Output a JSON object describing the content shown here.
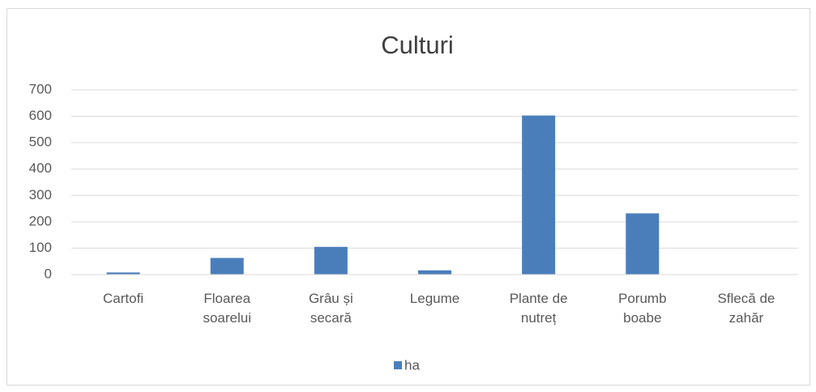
{
  "chart_data": {
    "type": "bar",
    "title": "Culturi",
    "categories": [
      "Cartofi",
      "Floarea soarelui",
      "Grâu și secară",
      "Legume",
      "Plante de nutreț",
      "Porumb boabe",
      "Sflecă de zahăr"
    ],
    "series": [
      {
        "name": "ha",
        "color": "#4a7ebb",
        "values": [
          8,
          63,
          105,
          16,
          603,
          232,
          0
        ]
      }
    ],
    "ylim": [
      0,
      700
    ],
    "yticks": [
      0,
      100,
      200,
      300,
      400,
      500,
      600,
      700
    ],
    "grid": true,
    "legend": "bottom"
  }
}
